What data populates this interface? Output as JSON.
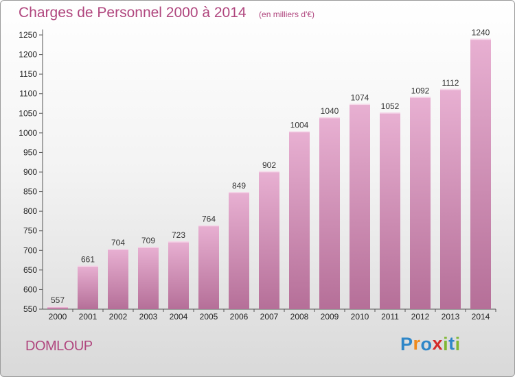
{
  "header": {
    "title": "Charges de Personnel 2000 à 2014",
    "unit_note": "(en milliers d'€)"
  },
  "commune": "DOMLOUP",
  "logo": {
    "text": "Proxiti",
    "letters": [
      {
        "ch": "P",
        "color": "#2e86c8"
      },
      {
        "ch": "r",
        "color": "#f08a1c"
      },
      {
        "ch": "o",
        "color": "#2e86c8"
      },
      {
        "ch": "x",
        "color": "#d42a2a"
      },
      {
        "ch": "i",
        "color": "#7fb733"
      },
      {
        "ch": "t",
        "color": "#2e86c8"
      },
      {
        "ch": "i",
        "color": "#7fb733"
      }
    ]
  },
  "colors": {
    "bar_top": "#e8b0d2",
    "bar_bottom": "#b56f98",
    "title": "#b0467e"
  },
  "chart_data": {
    "type": "bar",
    "title": "Charges de Personnel 2000 à 2014",
    "subtitle": "(en milliers d'€)",
    "xlabel": "",
    "ylabel": "",
    "categories": [
      "2000",
      "2001",
      "2002",
      "2003",
      "2004",
      "2005",
      "2006",
      "2007",
      "2008",
      "2009",
      "2010",
      "2011",
      "2012",
      "2013",
      "2014"
    ],
    "values": [
      557,
      661,
      704,
      709,
      723,
      764,
      849,
      902,
      1004,
      1040,
      1074,
      1052,
      1092,
      1112,
      1240
    ],
    "ylim": [
      550,
      1250
    ],
    "yticks": [
      550,
      600,
      650,
      700,
      750,
      800,
      850,
      900,
      950,
      1000,
      1050,
      1100,
      1150,
      1200,
      1250
    ],
    "grid": false,
    "data_labels": true
  }
}
